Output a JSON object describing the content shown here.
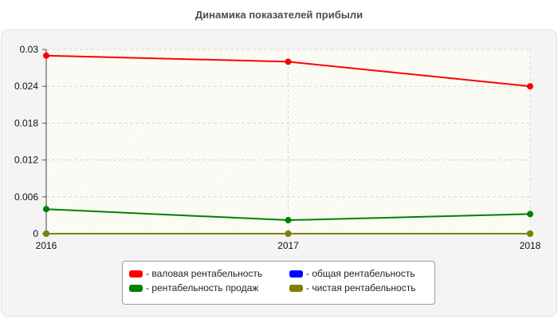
{
  "chart_data": {
    "type": "line",
    "title": "Динамика показателей прибыли",
    "x": [
      "2016",
      "2017",
      "2018"
    ],
    "ylim": [
      0,
      0.03
    ],
    "yticks": [
      "0",
      "0.006",
      "0.012",
      "0.018",
      "0.024",
      "0.03"
    ],
    "grid": true,
    "legend_position": "bottom",
    "series": [
      {
        "name": "валовая рентабельность",
        "color": "#ff0000",
        "values": [
          0.029,
          0.028,
          0.024
        ]
      },
      {
        "name": "общая рентабельность",
        "color": "#0000ff",
        "values": [
          0,
          0,
          0
        ]
      },
      {
        "name": "рентабельность продаж",
        "color": "#008000",
        "values": [
          0.004,
          0.0022,
          0.0032
        ]
      },
      {
        "name": "чистая рентабельность",
        "color": "#808000",
        "values": [
          0,
          0,
          0
        ]
      }
    ]
  },
  "legend": {
    "items": [
      {
        "label": "- валовая рентабельность",
        "color": "#ff0000"
      },
      {
        "label": "- общая рентабельность",
        "color": "#0000ff"
      },
      {
        "label": "- рентабельность продаж",
        "color": "#008000"
      },
      {
        "label": "- чистая рентабельность",
        "color": "#808000"
      }
    ]
  }
}
